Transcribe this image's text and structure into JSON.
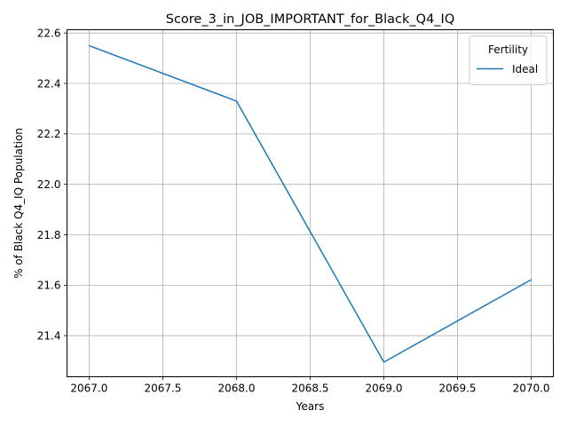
{
  "chart_data": {
    "type": "line",
    "title": "Score_3_in_JOB_IMPORTANT_for_Black_Q4_IQ",
    "xlabel": "Years",
    "ylabel": "% of Black Q4_IQ Population",
    "x": [
      2067,
      2068,
      2069,
      2070
    ],
    "series": [
      {
        "name": "Ideal",
        "values": [
          22.55,
          22.33,
          21.295,
          21.622
        ],
        "color": "#1f77b4"
      }
    ],
    "xlim": [
      2066.85,
      2070.15
    ],
    "ylim": [
      21.237,
      22.613
    ],
    "xticks": [
      2067.0,
      2067.5,
      2068.0,
      2068.5,
      2069.0,
      2069.5,
      2070.0
    ],
    "xtick_labels": [
      "2067.0",
      "2067.5",
      "2068.0",
      "2068.5",
      "2069.0",
      "2069.5",
      "2070.0"
    ],
    "yticks": [
      21.4,
      21.6,
      21.8,
      22.0,
      22.2,
      22.4,
      22.6
    ],
    "ytick_labels": [
      "21.4",
      "21.6",
      "21.8",
      "22.0",
      "22.2",
      "22.4",
      "22.6"
    ],
    "grid": true,
    "legend": {
      "title": "Fertility",
      "position": "top-right"
    }
  }
}
